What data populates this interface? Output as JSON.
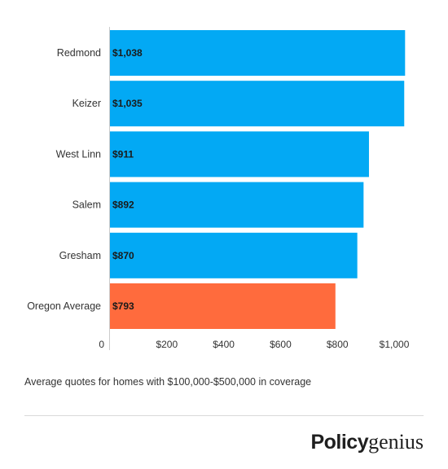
{
  "chart_data": {
    "type": "bar",
    "orientation": "horizontal",
    "categories": [
      "Redmond",
      "Keizer",
      "West Linn",
      "Salem",
      "Gresham",
      "Oregon Average"
    ],
    "values": [
      1038,
      1035,
      911,
      892,
      870,
      793
    ],
    "value_labels": [
      "$1,038",
      "$1,035",
      "$911",
      "$892",
      "$870",
      "$793"
    ],
    "colors": [
      "#03A9F4",
      "#03A9F4",
      "#03A9F4",
      "#03A9F4",
      "#03A9F4",
      "#FF6B3D"
    ],
    "xlim": [
      0,
      1040
    ],
    "xticks": [
      0,
      200,
      400,
      600,
      800,
      1000
    ],
    "xtick_labels": [
      "0",
      "$200",
      "$400",
      "$600",
      "$800",
      "$1,000"
    ],
    "title": "",
    "xlabel": "",
    "ylabel": "",
    "grid": false,
    "legend": "none"
  },
  "caption": "Average quotes for homes with $100,000-$500,000 in coverage",
  "logo": {
    "part1": "Policy",
    "part2": "genius"
  }
}
